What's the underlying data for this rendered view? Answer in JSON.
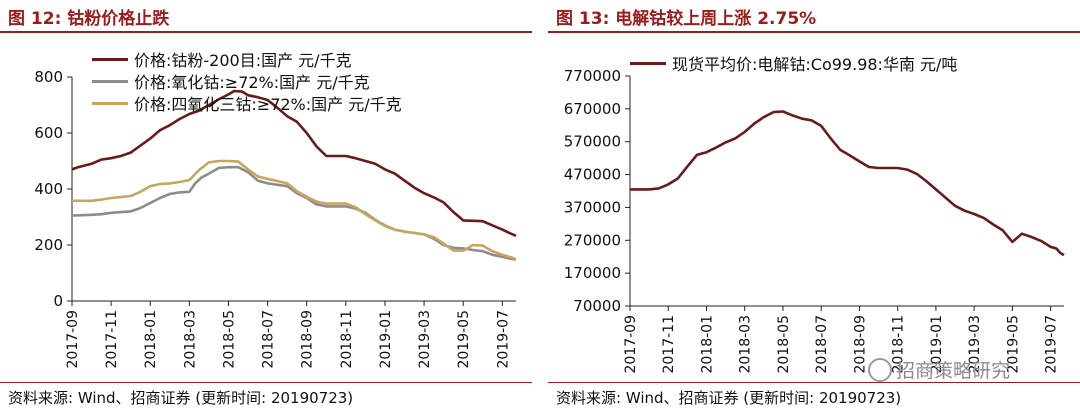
{
  "left": {
    "title": "图 12: 钴粉价格止跌",
    "source": "资料来源: Wind、招商证券 (更新时间: 20190723)"
  },
  "right": {
    "title": "图 13: 电解钴较上周上涨 2.75%",
    "source": "资料来源: Wind、招商证券 (更新时间: 20190723)"
  },
  "watermark": {
    "text": "招商策略研究",
    "icon": "wechat-icon"
  },
  "chart_data": [
    {
      "type": "line",
      "title": "",
      "xlabel": "",
      "ylabel": "",
      "x_ticks": [
        "2017-09",
        "2017-11",
        "2018-01",
        "2018-03",
        "2018-05",
        "2018-07",
        "2018-09",
        "2018-11",
        "2019-01",
        "2019-03",
        "2019-05",
        "2019-07"
      ],
      "y_ticks": [
        "0",
        "200",
        "400",
        "600",
        "800"
      ],
      "ylim": [
        0,
        800
      ],
      "xlim": [
        0,
        22.7
      ],
      "grid": false,
      "legend": "top-left",
      "series": [
        {
          "name": "价格:钴粉-200目:国产 元/千克",
          "color": "#6b1a1a",
          "points": [
            [
              0,
              470
            ],
            [
              0.3,
              478
            ],
            [
              1,
              490
            ],
            [
              1.5,
              505
            ],
            [
              2,
              510
            ],
            [
              2.5,
              518
            ],
            [
              3,
              530
            ],
            [
              3.5,
              555
            ],
            [
              4,
              580
            ],
            [
              4.5,
              610
            ],
            [
              5,
              628
            ],
            [
              5.5,
              650
            ],
            [
              6,
              668
            ],
            [
              6.5,
              680
            ],
            [
              7,
              700
            ],
            [
              7.5,
              720
            ],
            [
              8,
              738
            ],
            [
              8.3,
              750
            ],
            [
              8.7,
              748
            ],
            [
              9,
              735
            ],
            [
              9.5,
              728
            ],
            [
              10,
              718
            ],
            [
              10.5,
              690
            ],
            [
              11,
              660
            ],
            [
              11.5,
              640
            ],
            [
              12,
              600
            ],
            [
              12.5,
              552
            ],
            [
              13,
              518
            ],
            [
              14,
              518
            ],
            [
              14.5,
              510
            ],
            [
              15,
              500
            ],
            [
              15.5,
              490
            ],
            [
              16,
              470
            ],
            [
              16.5,
              455
            ],
            [
              17,
              430
            ],
            [
              17.5,
              405
            ],
            [
              18,
              385
            ],
            [
              18.5,
              370
            ],
            [
              19,
              352
            ],
            [
              19.5,
              318
            ],
            [
              20,
              288
            ],
            [
              21,
              285
            ],
            [
              21.5,
              270
            ],
            [
              22,
              255
            ],
            [
              22.3,
              245
            ],
            [
              22.7,
              233
            ]
          ]
        },
        {
          "name": "价格:氧化钴:≥72%:国产 元/千克",
          "color": "#8c8c8c",
          "points": [
            [
              0,
              305
            ],
            [
              1,
              308
            ],
            [
              1.5,
              310
            ],
            [
              2,
              315
            ],
            [
              3,
              320
            ],
            [
              3.5,
              332
            ],
            [
              4,
              350
            ],
            [
              4.5,
              368
            ],
            [
              5,
              382
            ],
            [
              5.5,
              388
            ],
            [
              6,
              390
            ],
            [
              6.3,
              420
            ],
            [
              6.6,
              440
            ],
            [
              7,
              455
            ],
            [
              7.5,
              475
            ],
            [
              8,
              478
            ],
            [
              8.5,
              478
            ],
            [
              9,
              460
            ],
            [
              9.5,
              430
            ],
            [
              10,
              420
            ],
            [
              11,
              410
            ],
            [
              11.5,
              385
            ],
            [
              12,
              368
            ],
            [
              12.5,
              345
            ],
            [
              13,
              338
            ],
            [
              14,
              338
            ],
            [
              14.5,
              330
            ],
            [
              15,
              315
            ],
            [
              15.5,
              290
            ],
            [
              16,
              270
            ],
            [
              16.5,
              255
            ],
            [
              17,
              248
            ],
            [
              18,
              238
            ],
            [
              18.5,
              222
            ],
            [
              19,
              200
            ],
            [
              19.5,
              190
            ],
            [
              20,
              188
            ],
            [
              20.5,
              182
            ],
            [
              21,
              178
            ],
            [
              21.5,
              165
            ],
            [
              22,
              158
            ],
            [
              22.5,
              150
            ],
            [
              22.7,
              148
            ]
          ]
        },
        {
          "name": "价格:四氧化三钴:≥72%:国产 元/千克",
          "color": "#c8a55c",
          "points": [
            [
              0,
              358
            ],
            [
              1,
              358
            ],
            [
              1.5,
              362
            ],
            [
              2,
              368
            ],
            [
              3,
              375
            ],
            [
              3.5,
              390
            ],
            [
              4,
              410
            ],
            [
              4.5,
              418
            ],
            [
              5,
              420
            ],
            [
              5.5,
              425
            ],
            [
              6,
              432
            ],
            [
              6.5,
              468
            ],
            [
              7,
              495
            ],
            [
              7.5,
              500
            ],
            [
              8,
              500
            ],
            [
              8.5,
              498
            ],
            [
              9,
              470
            ],
            [
              9.5,
              445
            ],
            [
              10,
              436
            ],
            [
              11,
              420
            ],
            [
              11.5,
              392
            ],
            [
              12,
              372
            ],
            [
              12.5,
              355
            ],
            [
              13,
              348
            ],
            [
              14,
              348
            ],
            [
              14.5,
              335
            ],
            [
              15,
              310
            ],
            [
              15.5,
              288
            ],
            [
              16,
              268
            ],
            [
              16.5,
              255
            ],
            [
              17,
              248
            ],
            [
              18,
              238
            ],
            [
              18.5,
              228
            ],
            [
              19,
              205
            ],
            [
              19.5,
              180
            ],
            [
              20,
              180
            ],
            [
              20.5,
              200
            ],
            [
              21,
              198
            ],
            [
              21.5,
              178
            ],
            [
              22,
              165
            ],
            [
              22.5,
              155
            ],
            [
              22.7,
              148
            ]
          ]
        }
      ]
    },
    {
      "type": "line",
      "title": "",
      "xlabel": "",
      "ylabel": "",
      "x_ticks": [
        "2017-09",
        "2017-11",
        "2018-01",
        "2018-03",
        "2018-05",
        "2018-07",
        "2018-09",
        "2018-11",
        "2019-01",
        "2019-03",
        "2019-05",
        "2019-07"
      ],
      "y_ticks": [
        "70000",
        "170000",
        "270000",
        "370000",
        "470000",
        "570000",
        "670000",
        "770000"
      ],
      "ylim": [
        70000,
        770000
      ],
      "xlim": [
        0,
        22.7
      ],
      "grid": false,
      "legend": "top-left",
      "series": [
        {
          "name": "现货平均价:电解钴:Co99.98:华南 元/吨",
          "color": "#6b1a1a",
          "points": [
            [
              0,
              425000
            ],
            [
              1,
              425000
            ],
            [
              1.5,
              428000
            ],
            [
              2,
              440000
            ],
            [
              2.5,
              458000
            ],
            [
              3,
              495000
            ],
            [
              3.5,
              530000
            ],
            [
              4,
              538000
            ],
            [
              4.5,
              552000
            ],
            [
              5,
              568000
            ],
            [
              5.5,
              580000
            ],
            [
              6,
              600000
            ],
            [
              6.5,
              625000
            ],
            [
              7,
              645000
            ],
            [
              7.5,
              660000
            ],
            [
              8,
              662000
            ],
            [
              8.5,
              650000
            ],
            [
              9,
              640000
            ],
            [
              9.5,
              635000
            ],
            [
              10,
              618000
            ],
            [
              10.5,
              580000
            ],
            [
              11,
              545000
            ],
            [
              11.5,
              528000
            ],
            [
              12,
              510000
            ],
            [
              12.5,
              493000
            ],
            [
              13,
              490000
            ],
            [
              14,
              490000
            ],
            [
              14.5,
              485000
            ],
            [
              15,
              472000
            ],
            [
              15.5,
              450000
            ],
            [
              16,
              425000
            ],
            [
              16.5,
              400000
            ],
            [
              17,
              375000
            ],
            [
              17.5,
              360000
            ],
            [
              18,
              350000
            ],
            [
              18.5,
              338000
            ],
            [
              19,
              318000
            ],
            [
              19.5,
              300000
            ],
            [
              20,
              265000
            ],
            [
              20.5,
              290000
            ],
            [
              21,
              280000
            ],
            [
              21.5,
              268000
            ],
            [
              22,
              250000
            ],
            [
              22.3,
              245000
            ],
            [
              22.5,
              232000
            ],
            [
              22.7,
              225000
            ]
          ]
        }
      ]
    }
  ]
}
